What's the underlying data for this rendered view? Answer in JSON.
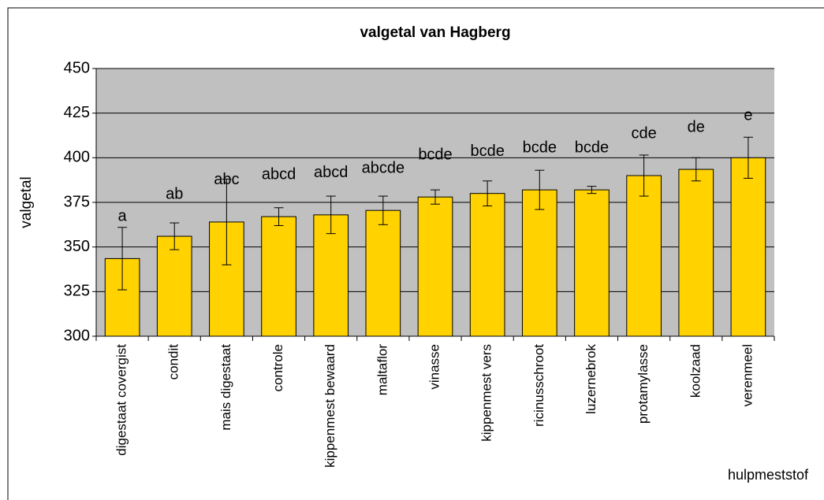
{
  "chart_data": {
    "type": "bar",
    "title": "valgetal van Hagberg",
    "y_label": "valgetal",
    "x_label": "hulpmeststof",
    "categories": [
      "digestaat covergist",
      "condit",
      "mais digestaat",
      "controle",
      "kippenmest bewaard",
      "maltaflor",
      "vinasse",
      "kippenmest vers",
      "ricinusschroot",
      "luzernebrok",
      "protamylasse",
      "koolzaad",
      "verenmeel"
    ],
    "values": [
      343.5,
      356,
      364,
      367,
      368,
      370.5,
      378,
      380,
      382,
      382,
      390,
      393.5,
      400
    ],
    "errors": [
      17.5,
      7.5,
      24,
      5,
      10.5,
      8,
      4,
      7,
      11,
      2,
      11.5,
      6.5,
      11.5
    ],
    "bar_labels": [
      "a",
      "ab",
      "abc",
      "abcd",
      "abcd",
      "abcde",
      "bcde",
      "bcde",
      "bcde",
      "bcde",
      "cde",
      "de",
      "e"
    ],
    "color": "#ffd200",
    "plot_background": "#c0c0c0",
    "ylim": [
      300,
      450
    ],
    "yticks": [
      300,
      325,
      350,
      375,
      400,
      425,
      450
    ],
    "grid": true
  }
}
